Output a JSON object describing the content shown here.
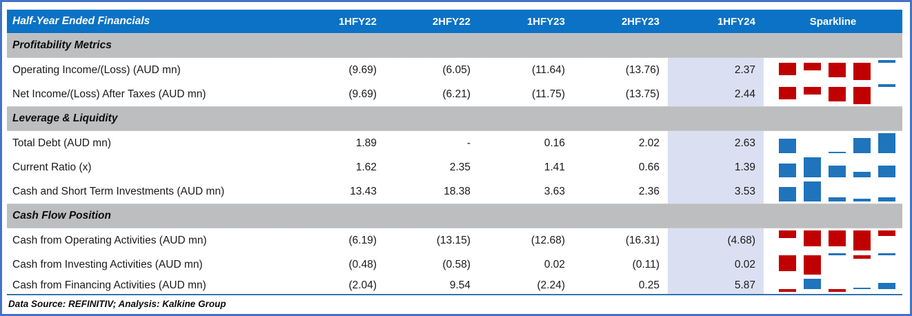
{
  "header": {
    "title": "Half-Year Ended Financials",
    "columns": [
      "1HFY22",
      "2HFY22",
      "1HFY23",
      "2HFY23",
      "1HFY24"
    ],
    "sparkline_label": "Sparkline"
  },
  "sections": {
    "profitability": "Profitability Metrics",
    "leverage": "Leverage & Liquidity",
    "cashflow": "Cash Flow Position"
  },
  "rows": {
    "operating_income": {
      "label": "Operating Income/(Loss) (AUD mn)",
      "values": [
        "(9.69)",
        "(6.05)",
        "(11.64)",
        "(13.76)",
        "2.37"
      ]
    },
    "net_income": {
      "label": "Net Income/(Loss) After Taxes (AUD mn)",
      "values": [
        "(9.69)",
        "(6.21)",
        "(11.75)",
        "(13.75)",
        "2.44"
      ]
    },
    "total_debt": {
      "label": "Total Debt (AUD mn)",
      "values": [
        "1.89",
        "-",
        "0.16",
        "2.02",
        "2.63"
      ]
    },
    "current_ratio": {
      "label": "Current Ratio (x)",
      "values": [
        "1.62",
        "2.35",
        "1.41",
        "0.66",
        "1.39"
      ]
    },
    "cash_sti": {
      "label": "Cash and Short Term Investments (AUD mn)",
      "values": [
        "13.43",
        "18.38",
        "3.63",
        "2.36",
        "3.53"
      ]
    },
    "cfo": {
      "label": "Cash from Operating Activities (AUD mn)",
      "values": [
        "(6.19)",
        "(13.15)",
        "(12.68)",
        "(16.31)",
        "(4.68)"
      ]
    },
    "cfi": {
      "label": "Cash from Investing Activities (AUD mn)",
      "values": [
        "(0.48)",
        "(0.58)",
        "0.02",
        "(0.11)",
        "0.02"
      ]
    },
    "cff": {
      "label": "Cash from Financing Activities (AUD mn)",
      "values": [
        "(2.04)",
        "9.54",
        "(2.24)",
        "0.25",
        "5.87"
      ]
    }
  },
  "footer": "Data Source: REFINITIV; Analysis: Kalkine Group",
  "colors": {
    "header_blue": "#0B72C5",
    "frame_blue": "#4472C4",
    "section_gray": "#BDBEC0",
    "highlight_lavender": "#DAE0F2",
    "footer_line_blue": "#2E75B6",
    "spark_positive": "#1F74BC",
    "spark_negative": "#C00000"
  },
  "chart_data": {
    "type": "table",
    "title": "Half-Year Ended Financials",
    "categories": [
      "1HFY22",
      "2HFY22",
      "1HFY23",
      "2HFY23",
      "1HFY24"
    ],
    "highlight_column": "1HFY24",
    "sections": [
      {
        "name": "Profitability Metrics",
        "rows": [
          "operating_income",
          "net_income"
        ]
      },
      {
        "name": "Leverage & Liquidity",
        "rows": [
          "total_debt",
          "current_ratio",
          "cash_sti"
        ]
      },
      {
        "name": "Cash Flow Position",
        "rows": [
          "cfo",
          "cfi",
          "cff"
        ]
      }
    ],
    "sparklines": [
      {
        "key": "operating_income",
        "type": "bar",
        "values": [
          -9.69,
          -6.05,
          -11.64,
          -13.76,
          2.37
        ]
      },
      {
        "key": "net_income",
        "type": "bar",
        "values": [
          -9.69,
          -6.21,
          -11.75,
          -13.75,
          2.44
        ]
      },
      {
        "key": "total_debt",
        "type": "bar",
        "values": [
          1.89,
          null,
          0.16,
          2.02,
          2.63
        ]
      },
      {
        "key": "current_ratio",
        "type": "bar",
        "values": [
          1.62,
          2.35,
          1.41,
          0.66,
          1.39
        ]
      },
      {
        "key": "cash_sti",
        "type": "bar",
        "values": [
          13.43,
          18.38,
          3.63,
          2.36,
          3.53
        ]
      },
      {
        "key": "cfo",
        "type": "bar",
        "values": [
          -6.19,
          -13.15,
          -12.68,
          -16.31,
          -4.68
        ]
      },
      {
        "key": "cfi",
        "type": "bar",
        "values": [
          -0.48,
          -0.58,
          0.02,
          -0.11,
          0.02
        ]
      },
      {
        "key": "cff",
        "type": "bar",
        "values": [
          -2.04,
          9.54,
          -2.24,
          0.25,
          5.87
        ]
      }
    ]
  }
}
